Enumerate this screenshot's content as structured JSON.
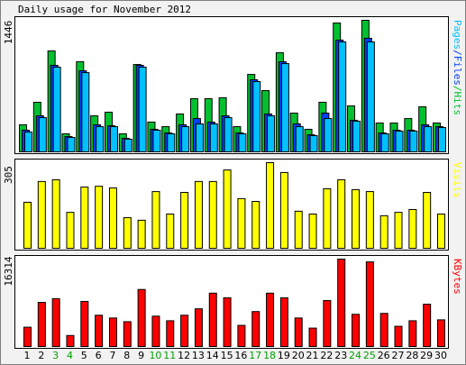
{
  "chart_data": [
    {
      "type": "bar",
      "title": "Daily usage for November 2012",
      "ylim": [
        0,
        1446
      ],
      "yticks": [
        1446
      ],
      "legend_separator": "/",
      "series": [
        {
          "name": "Pages",
          "color": "#00c0ff",
          "values": [
            218,
            376,
            931,
            158,
            871,
            277,
            277,
            139,
            931,
            238,
            198,
            277,
            307,
            307,
            376,
            198,
            772,
            396,
            970,
            277,
            178,
            366,
            1208,
            337,
            1208,
            198,
            228,
            228,
            277,
            267
          ]
        },
        {
          "name": "Files",
          "color": "#0040ff",
          "values": [
            238,
            396,
            951,
            168,
            891,
            297,
            287,
            149,
            951,
            248,
            208,
            297,
            366,
            327,
            396,
            208,
            792,
            416,
            990,
            307,
            188,
            426,
            1228,
            347,
            1248,
            208,
            238,
            238,
            297,
            277
          ]
        },
        {
          "name": "Hits",
          "color": "#00c030",
          "values": [
            297,
            545,
            1109,
            198,
            990,
            396,
            436,
            198,
            960,
            327,
            277,
            416,
            584,
            584,
            594,
            277,
            851,
            673,
            1089,
            426,
            248,
            545,
            1416,
            505,
            1446,
            317,
            317,
            366,
            495,
            317
          ]
        }
      ]
    },
    {
      "type": "bar",
      "ylim": [
        0,
        305
      ],
      "yticks": [
        305
      ],
      "series": [
        {
          "name": "Visits",
          "color": "#ffff00",
          "values": [
            164,
            238,
            244,
            128,
            218,
            221,
            215,
            109,
            100,
            202,
            122,
            199,
            238,
            238,
            279,
            177,
            167,
            305,
            270,
            132,
            122,
            212,
            244,
            209,
            202,
            116,
            128,
            138,
            199,
            122
          ]
        }
      ]
    },
    {
      "type": "bar",
      "ylim": [
        0,
        16314
      ],
      "yticks": [
        16314
      ],
      "categories": [
        "1",
        "2",
        "3",
        "4",
        "5",
        "6",
        "7",
        "8",
        "9",
        "10",
        "11",
        "12",
        "13",
        "14",
        "15",
        "16",
        "17",
        "18",
        "19",
        "20",
        "21",
        "22",
        "23",
        "24",
        "25",
        "26",
        "27",
        "28",
        "29",
        "30"
      ],
      "highlight_indices": [
        2,
        3,
        9,
        10,
        16,
        17,
        23,
        24
      ],
      "highlight_color": "#00a000",
      "series": [
        {
          "name": "KBytes",
          "color": "#ff0000",
          "values": [
            3606,
            8242,
            8929,
            2060,
            8414,
            5838,
            5323,
            4636,
            10646,
            5666,
            4808,
            5838,
            7040,
            9959,
            9100,
            3949,
            6525,
            9959,
            9100,
            5323,
            3434,
            8585,
            16314,
            6010,
            15797,
            6181,
            3777,
            4808,
            7898,
            4980
          ]
        }
      ]
    }
  ]
}
